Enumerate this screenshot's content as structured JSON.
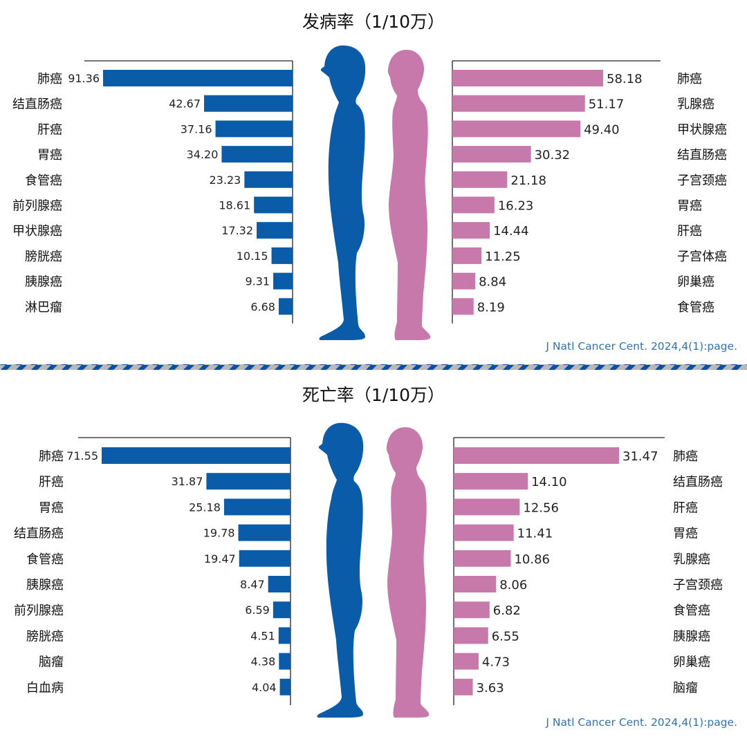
{
  "colors": {
    "male": "#0a5ca8",
    "female": "#c879ac",
    "divider_blue": "#0b4f9c",
    "divider_gray": "#b8b8b8",
    "source": "#2e72b8",
    "text": "#222222"
  },
  "icons": {
    "male": "male-silhouette-icon",
    "female": "female-silhouette-icon"
  },
  "chart_data": [
    {
      "type": "bar",
      "title": "发病率（1/10万）",
      "source": "J Natl Cancer Cent. 2024,4(1):page.",
      "series": [
        {
          "sex": "male",
          "categories": [
            "肺癌",
            "结直肠癌",
            "肝癌",
            "胃癌",
            "食管癌",
            "前列腺癌",
            "甲状腺癌",
            "膀胱癌",
            "胰腺癌",
            "淋巴瘤"
          ],
          "values": [
            91.36,
            42.67,
            37.16,
            34.2,
            23.23,
            18.61,
            17.32,
            10.15,
            9.31,
            6.68
          ],
          "labels": [
            "91.36",
            "42.67",
            "37.16",
            "34.20",
            "23.23",
            "18.61",
            "17.32",
            "10.15",
            "9.31",
            "6.68"
          ]
        },
        {
          "sex": "female",
          "categories": [
            "肺癌",
            "乳腺癌",
            "甲状腺癌",
            "结直肠癌",
            "子宫颈癌",
            "胃癌",
            "肝癌",
            "子宫体癌",
            "卵巢癌",
            "食管癌"
          ],
          "values": [
            58.18,
            51.17,
            49.4,
            30.32,
            21.18,
            16.23,
            14.44,
            11.25,
            8.84,
            8.19
          ],
          "labels": [
            "58.18",
            "51.17",
            "49.40",
            "30.32",
            "21.18",
            "16.23",
            "14.44",
            "11.25",
            "8.84",
            "8.19"
          ]
        }
      ]
    },
    {
      "type": "bar",
      "title": "死亡率（1/10万）",
      "source": "J Natl Cancer Cent. 2024,4(1):page.",
      "series": [
        {
          "sex": "male",
          "categories": [
            "肺癌",
            "肝癌",
            "胃癌",
            "结直肠癌",
            "食管癌",
            "胰腺癌",
            "前列腺癌",
            "膀胱癌",
            "脑瘤",
            "白血病"
          ],
          "values": [
            71.55,
            31.87,
            25.18,
            19.78,
            19.47,
            8.47,
            6.59,
            4.51,
            4.38,
            4.04
          ],
          "labels": [
            "71.55",
            "31.87",
            "25.18",
            "19.78",
            "19.47",
            "8.47",
            "6.59",
            "4.51",
            "4.38",
            "4.04"
          ]
        },
        {
          "sex": "female",
          "categories": [
            "肺癌",
            "结直肠癌",
            "肝癌",
            "胃癌",
            "乳腺癌",
            "子宫颈癌",
            "食管癌",
            "胰腺癌",
            "卵巢癌",
            "脑瘤"
          ],
          "values": [
            31.47,
            14.1,
            12.56,
            11.41,
            10.86,
            8.06,
            6.82,
            6.55,
            4.73,
            3.63
          ],
          "labels": [
            "31.47",
            "14.10",
            "12.56",
            "11.41",
            "10.86",
            "8.06",
            "6.82",
            "6.55",
            "4.73",
            "3.63"
          ]
        }
      ]
    }
  ]
}
